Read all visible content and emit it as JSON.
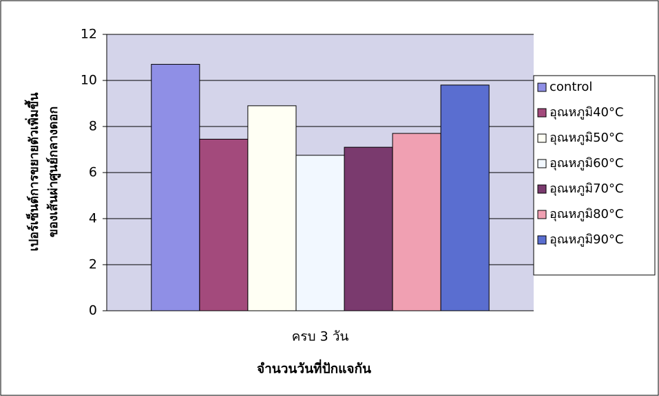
{
  "chart_data": {
    "type": "bar",
    "ylabel": [
      "เปอร์เซ็นต์การขยายตัวเพิ่มขึ้น",
      "ของเส้นผ่าศูนย์กลางดอก"
    ],
    "xlabel": "จำนวนวันที่ปักแจกัน",
    "categories": [
      "ครบ 3 วัน"
    ],
    "series": [
      {
        "name": "control",
        "color": "#8f8fe6",
        "values": [
          10.7
        ]
      },
      {
        "name": "อุณหภูมิ40°C",
        "color": "#a34a7c",
        "values": [
          7.45
        ]
      },
      {
        "name": "อุณหภูมิ50°C",
        "color": "#fffff4",
        "values": [
          8.9
        ]
      },
      {
        "name": "อุณหภูมิ60°C",
        "color": "#f2f8ff",
        "values": [
          6.75
        ]
      },
      {
        "name": "อุณหภูมิ70°C",
        "color": "#7a3a6e",
        "values": [
          7.1
        ]
      },
      {
        "name": "อุณหภูมิ80°C",
        "color": "#f0a0b2",
        "values": [
          7.7
        ]
      },
      {
        "name": "อุณหภูมิ90°C",
        "color": "#5a6ed0",
        "values": [
          9.8
        ]
      }
    ],
    "ylim": [
      0,
      12
    ],
    "yticks": [
      0,
      2,
      4,
      6,
      8,
      10,
      12
    ],
    "grid": true,
    "legend": "right"
  }
}
